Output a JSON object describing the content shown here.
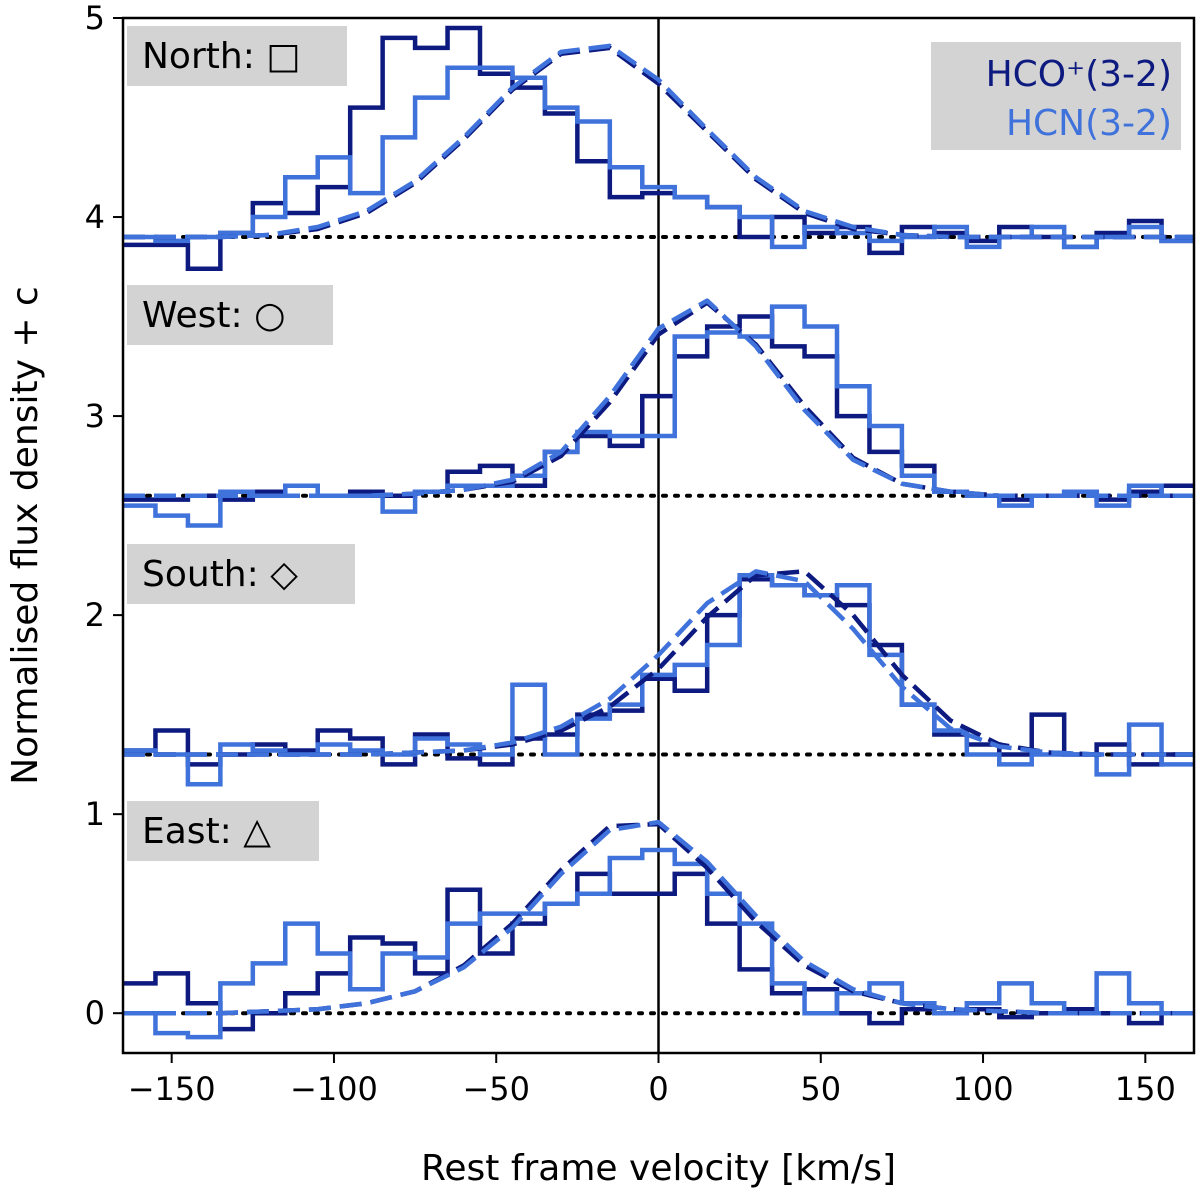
{
  "chart_data": {
    "type": "line",
    "title": "",
    "xlabel": "Rest frame velocity [km/s]",
    "ylabel": "Normalised flux density + c",
    "xlim": [
      -165,
      165
    ],
    "ylim": [
      -0.2,
      5.0
    ],
    "xticks": [
      -150,
      -100,
      -50,
      0,
      50,
      100,
      150
    ],
    "xtick_labels": [
      "−150",
      "−100",
      "−50",
      "0",
      "50",
      "100",
      "150"
    ],
    "yticks": [
      0,
      1,
      2,
      3,
      4,
      5
    ],
    "ytick_labels": [
      "0",
      "1",
      "2",
      "3",
      "4",
      "5"
    ],
    "colors": {
      "hco": "#0d1a80",
      "hcn": "#3f72db",
      "axis": "#000000",
      "box": "#d3d3d3"
    },
    "legend": {
      "position": "top-right",
      "entries": [
        {
          "label": "HCO⁺(3-2)",
          "color": "#0d1a80"
        },
        {
          "label": "HCN(3-2)",
          "color": "#3f72db"
        }
      ]
    },
    "vline_x": 0,
    "bin_edges": [
      -165,
      -155,
      -145,
      -135,
      -125,
      -115,
      -105,
      -95,
      -85,
      -75,
      -65,
      -55,
      -45,
      -35,
      -25,
      -15,
      -5,
      5,
      15,
      25,
      35,
      45,
      55,
      65,
      75,
      85,
      95,
      105,
      115,
      125,
      135,
      145,
      155,
      165
    ],
    "fit_x": [
      -165,
      -150,
      -135,
      -120,
      -105,
      -90,
      -75,
      -60,
      -45,
      -30,
      -15,
      0,
      15,
      30,
      45,
      60,
      75,
      90,
      105,
      120,
      135,
      150,
      165
    ],
    "panels": [
      {
        "region": "North",
        "marker": "□",
        "baseline": 3.9,
        "series": [
          {
            "name": "HCO⁺(3-2)",
            "key": "hco",
            "values": [
              3.86,
              3.86,
              3.74,
              3.92,
              4.07,
              4.02,
              4.15,
              4.55,
              4.9,
              4.85,
              4.95,
              4.72,
              4.65,
              4.52,
              4.28,
              4.1,
              4.12,
              4.1,
              4.05,
              3.9,
              4.0,
              3.92,
              3.95,
              3.82,
              3.95,
              3.92,
              3.88,
              3.95,
              3.9,
              3.85,
              3.92,
              3.98,
              3.88
            ]
          },
          {
            "name": "HCN(3-2)",
            "key": "hcn",
            "values": [
              3.9,
              3.88,
              3.9,
              3.92,
              4.0,
              4.2,
              4.3,
              4.12,
              4.4,
              4.6,
              4.75,
              4.75,
              4.7,
              4.55,
              4.48,
              4.25,
              4.15,
              4.1,
              4.05,
              4.0,
              3.85,
              3.95,
              3.92,
              3.88,
              3.9,
              3.95,
              3.85,
              3.9,
              3.95,
              3.85,
              3.9,
              3.95,
              3.88
            ]
          }
        ],
        "fits": [
          {
            "key": "hco",
            "values": [
              3.9,
              3.9,
              3.9,
              3.91,
              3.94,
              4.02,
              4.17,
              4.39,
              4.64,
              4.82,
              4.85,
              4.67,
              4.43,
              4.19,
              4.02,
              3.94,
              3.91,
              3.9,
              3.9,
              3.9,
              3.9,
              3.9,
              3.9
            ]
          },
          {
            "key": "hcn",
            "values": [
              3.9,
              3.9,
              3.9,
              3.91,
              3.95,
              4.03,
              4.18,
              4.4,
              4.65,
              4.83,
              4.86,
              4.69,
              4.44,
              4.2,
              4.03,
              3.95,
              3.91,
              3.9,
              3.9,
              3.9,
              3.9,
              3.9,
              3.9
            ]
          }
        ]
      },
      {
        "region": "West",
        "marker": "○",
        "baseline": 2.6,
        "series": [
          {
            "name": "HCO⁺(3-2)",
            "key": "hco",
            "values": [
              2.58,
              2.58,
              2.6,
              2.58,
              2.62,
              2.65,
              2.6,
              2.62,
              2.6,
              2.62,
              2.72,
              2.75,
              2.65,
              2.82,
              2.9,
              2.85,
              3.1,
              3.3,
              3.45,
              3.5,
              3.35,
              3.3,
              3.0,
              2.82,
              2.75,
              2.62,
              2.6,
              2.58,
              2.6,
              2.62,
              2.58,
              2.62,
              2.65
            ]
          },
          {
            "name": "HCN(3-2)",
            "key": "hcn",
            "values": [
              2.55,
              2.5,
              2.45,
              2.62,
              2.6,
              2.65,
              2.6,
              2.6,
              2.52,
              2.62,
              2.65,
              2.65,
              2.7,
              2.82,
              2.92,
              2.9,
              2.9,
              3.4,
              3.42,
              3.4,
              3.55,
              3.45,
              3.15,
              2.95,
              2.7,
              2.62,
              2.6,
              2.55,
              2.6,
              2.62,
              2.55,
              2.65,
              2.6
            ]
          }
        ],
        "fits": [
          {
            "key": "hco",
            "values": [
              2.6,
              2.6,
              2.6,
              2.6,
              2.6,
              2.6,
              2.61,
              2.63,
              2.67,
              2.8,
              3.07,
              3.41,
              3.57,
              3.36,
              3.05,
              2.79,
              2.66,
              2.62,
              2.6,
              2.6,
              2.6,
              2.6,
              2.6
            ]
          },
          {
            "key": "hcn",
            "values": [
              2.6,
              2.6,
              2.6,
              2.6,
              2.6,
              2.6,
              2.61,
              2.63,
              2.68,
              2.82,
              3.1,
              3.44,
              3.58,
              3.35,
              3.03,
              2.78,
              2.66,
              2.62,
              2.6,
              2.6,
              2.6,
              2.6,
              2.6
            ]
          }
        ]
      },
      {
        "region": "South",
        "marker": "◇",
        "baseline": 1.3,
        "series": [
          {
            "name": "HCO⁺(3-2)",
            "key": "hco",
            "values": [
              1.32,
              1.42,
              1.25,
              1.3,
              1.35,
              1.32,
              1.42,
              1.38,
              1.25,
              1.4,
              1.28,
              1.25,
              1.38,
              1.4,
              1.5,
              1.52,
              1.68,
              1.62,
              2.0,
              2.18,
              2.15,
              2.1,
              2.05,
              1.85,
              1.55,
              1.4,
              1.35,
              1.3,
              1.5,
              1.3,
              1.35,
              1.25,
              1.3
            ]
          },
          {
            "name": "HCN(3-2)",
            "key": "hcn",
            "values": [
              1.32,
              1.3,
              1.15,
              1.35,
              1.32,
              1.3,
              1.35,
              1.32,
              1.3,
              1.38,
              1.35,
              1.3,
              1.65,
              1.3,
              1.48,
              1.55,
              1.7,
              1.75,
              1.85,
              2.2,
              2.15,
              2.1,
              2.15,
              1.8,
              1.55,
              1.42,
              1.3,
              1.25,
              1.3,
              1.3,
              1.2,
              1.45,
              1.25
            ]
          }
        ],
        "fits": [
          {
            "key": "hco",
            "values": [
              1.3,
              1.3,
              1.3,
              1.3,
              1.3,
              1.3,
              1.31,
              1.32,
              1.35,
              1.42,
              1.54,
              1.73,
              1.99,
              2.2,
              2.22,
              2.0,
              1.7,
              1.47,
              1.35,
              1.31,
              1.3,
              1.3,
              1.3
            ]
          },
          {
            "key": "hcn",
            "values": [
              1.3,
              1.3,
              1.3,
              1.3,
              1.3,
              1.3,
              1.31,
              1.32,
              1.36,
              1.44,
              1.58,
              1.8,
              2.06,
              2.22,
              2.17,
              1.93,
              1.64,
              1.43,
              1.34,
              1.31,
              1.3,
              1.3,
              1.3
            ]
          }
        ]
      },
      {
        "region": "East",
        "marker": "△",
        "baseline": 0.0,
        "series": [
          {
            "name": "HCO⁺(3-2)",
            "key": "hco",
            "values": [
              0.15,
              0.2,
              0.05,
              -0.08,
              0.0,
              0.1,
              0.2,
              0.38,
              0.35,
              0.2,
              0.62,
              0.3,
              0.45,
              0.55,
              0.7,
              0.6,
              0.6,
              0.7,
              0.45,
              0.22,
              0.1,
              0.12,
              0.0,
              -0.05,
              0.02,
              0.0,
              0.02,
              -0.02,
              0.0,
              0.02,
              0.0,
              -0.05,
              0.0
            ]
          },
          {
            "name": "HCN(3-2)",
            "key": "hcn",
            "values": [
              0.0,
              -0.1,
              -0.12,
              0.15,
              0.25,
              0.45,
              0.3,
              0.12,
              0.3,
              0.28,
              0.45,
              0.5,
              0.5,
              0.55,
              0.6,
              0.78,
              0.82,
              0.75,
              0.6,
              0.45,
              0.15,
              0.0,
              0.1,
              0.15,
              0.05,
              0.0,
              0.05,
              0.15,
              0.05,
              0.0,
              0.2,
              0.05,
              0.0
            ]
          }
        ],
        "fits": [
          {
            "key": "hco",
            "values": [
              0.0,
              0.0,
              0.0,
              0.01,
              0.02,
              0.05,
              0.11,
              0.24,
              0.45,
              0.72,
              0.94,
              0.95,
              0.73,
              0.46,
              0.24,
              0.11,
              0.05,
              0.02,
              0.01,
              0.0,
              0.0,
              0.0,
              0.0
            ]
          },
          {
            "key": "hcn",
            "values": [
              0.0,
              0.0,
              0.0,
              0.01,
              0.02,
              0.05,
              0.11,
              0.23,
              0.43,
              0.7,
              0.92,
              0.96,
              0.76,
              0.49,
              0.26,
              0.12,
              0.05,
              0.02,
              0.01,
              0.0,
              0.0,
              0.0,
              0.0
            ]
          }
        ]
      }
    ]
  }
}
